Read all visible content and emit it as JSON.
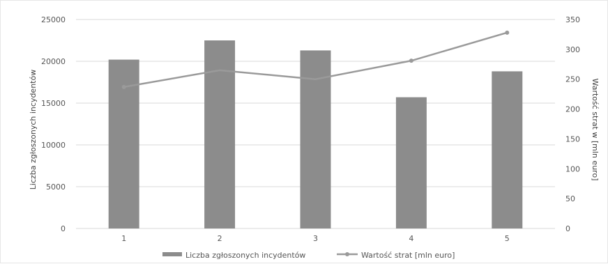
{
  "chart_data": {
    "type": "bar",
    "categories": [
      "1",
      "2",
      "3",
      "4",
      "5"
    ],
    "series": [
      {
        "name": "Liczba zgłoszonych incydentów",
        "type": "bar",
        "axis": "left",
        "values": [
          20200,
          22500,
          21300,
          15700,
          18800
        ]
      },
      {
        "name": "Wartość strat [mln euro]",
        "type": "line",
        "axis": "right",
        "values": [
          237,
          265,
          250,
          281,
          328
        ]
      }
    ],
    "ylabel": "Liczba zgłoszonych incydentów",
    "ylabel_right": "Wartość strat w [mln euro]",
    "ylim": [
      0,
      25000
    ],
    "ylim_right": [
      0,
      350
    ],
    "yticks": [
      "0",
      "5000",
      "10000",
      "15000",
      "20000",
      "25000"
    ],
    "yticks_right": [
      "0",
      "50",
      "100",
      "150",
      "200",
      "250",
      "300",
      "350"
    ],
    "grid": true,
    "legend_position": "bottom",
    "colors": {
      "bar": "#8c8c8c",
      "line": "#9a9a9a",
      "grid": "#d9d9d9"
    }
  }
}
